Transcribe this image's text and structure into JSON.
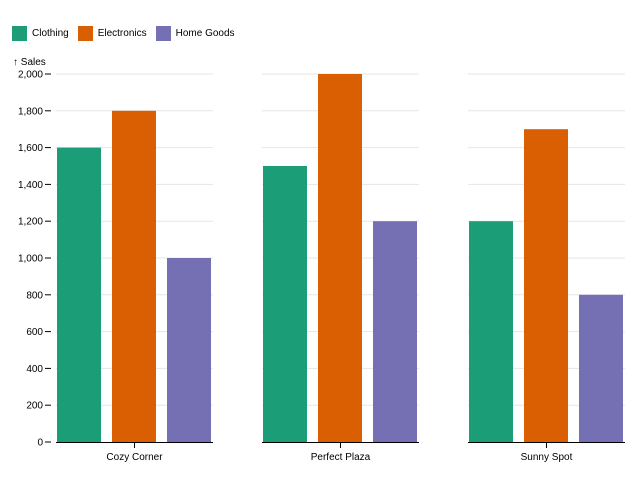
{
  "chart_data": {
    "type": "bar",
    "layout": "grouped",
    "ylabel": "↑ Sales",
    "ylim": [
      0,
      2000
    ],
    "yticks": [
      0,
      200,
      400,
      600,
      800,
      1000,
      1200,
      1400,
      1600,
      1800,
      2000
    ],
    "ytick_labels": [
      "0",
      "200",
      "400",
      "600",
      "800",
      "1,000",
      "1,200",
      "1,400",
      "1,600",
      "1,800",
      "2,000"
    ],
    "grid": true,
    "legend_position": "top-left",
    "categories": [
      "Cozy Corner",
      "Perfect Plaza",
      "Sunny Spot"
    ],
    "series": [
      {
        "name": "Clothing",
        "color": "#1b9e77",
        "values": [
          1600,
          1500,
          1200
        ]
      },
      {
        "name": "Electronics",
        "color": "#d95f02",
        "values": [
          1800,
          2000,
          1700
        ]
      },
      {
        "name": "Home Goods",
        "color": "#7570b3",
        "values": [
          1000,
          1200,
          800
        ]
      }
    ]
  }
}
